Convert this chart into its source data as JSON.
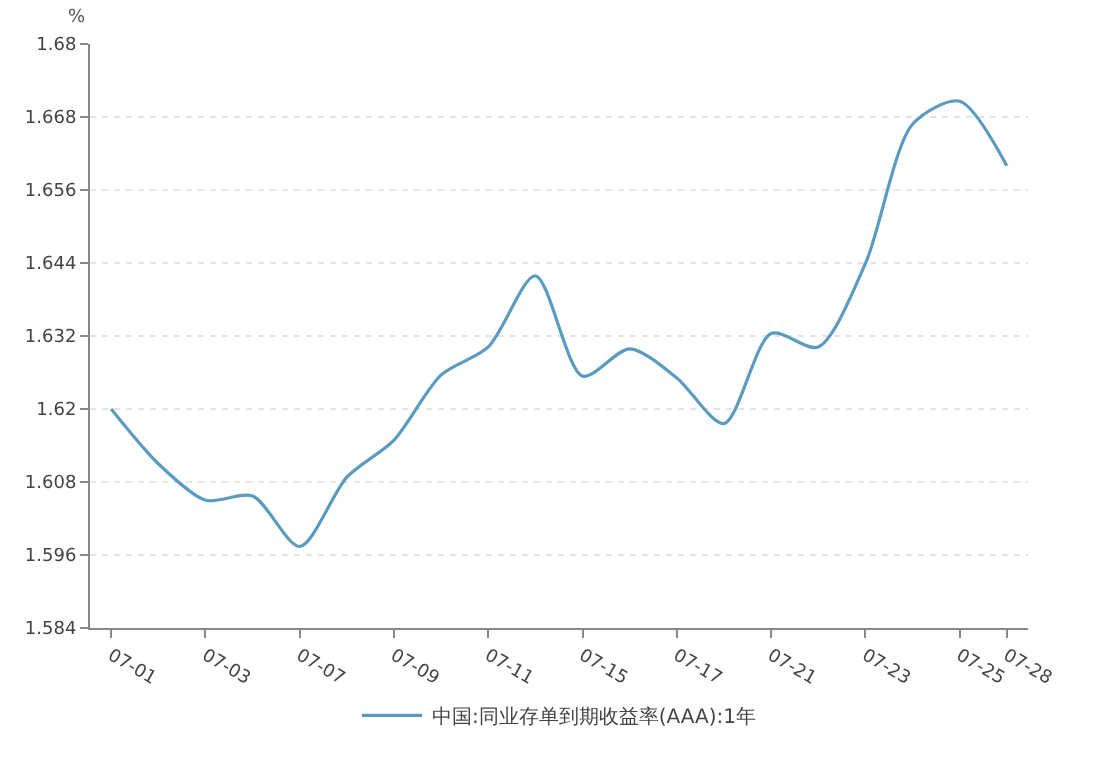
{
  "chart_data": {
    "type": "line",
    "ylabel": "%",
    "categories": [
      "07-01",
      null,
      "07-03",
      null,
      "07-07",
      null,
      "07-09",
      null,
      "07-11",
      null,
      "07-15",
      null,
      "07-17",
      null,
      "07-21",
      null,
      "07-23",
      null,
      "07-25",
      "07-28"
    ],
    "series": [
      {
        "name": "中国:同业存单到期收益率(AAA):1年",
        "color": "#5b9bc0",
        "values": [
          1.62,
          1.611,
          1.605,
          1.6057,
          1.5974,
          1.6088,
          1.6149,
          1.6256,
          1.6302,
          1.6419,
          1.6254,
          1.6299,
          1.6251,
          1.6176,
          1.6324,
          1.6302,
          1.6439,
          1.6668,
          1.6706,
          1.66
        ]
      }
    ],
    "ylim": [
      1.584,
      1.68
    ],
    "yticks": [
      1.584,
      1.596,
      1.608,
      1.62,
      1.632,
      1.644,
      1.656,
      1.668,
      1.68
    ],
    "grid": "y",
    "legend": "bottom",
    "marker": "none",
    "line_style": "solid"
  }
}
